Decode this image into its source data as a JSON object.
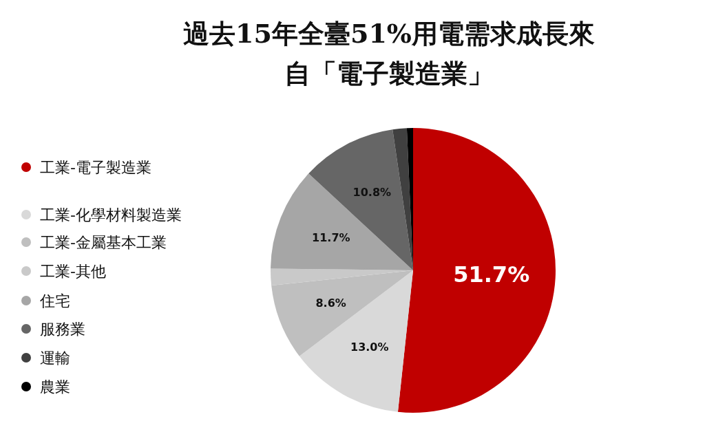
{
  "chart_data": {
    "type": "pie",
    "title": "過去15年全臺51%用電需求成長來自「電子製造業」",
    "categories": [
      "工業-電子製造業",
      "工業-化學材料製造業",
      "工業-金屬基本工業",
      "工業-其他",
      "住宅",
      "服務業",
      "運輸",
      "農業"
    ],
    "values": [
      51.7,
      13.0,
      8.6,
      1.9,
      11.7,
      10.8,
      1.6,
      0.7
    ],
    "colors": [
      "#c00000",
      "#d9d9d9",
      "#bfbfbf",
      "#c9c9c9",
      "#a6a6a6",
      "#666666",
      "#404040",
      "#000000"
    ],
    "value_labels": [
      "51.7%",
      "13.0%",
      "8.6%",
      null,
      "11.7%",
      "10.8%",
      null,
      null
    ],
    "legend": "left"
  }
}
